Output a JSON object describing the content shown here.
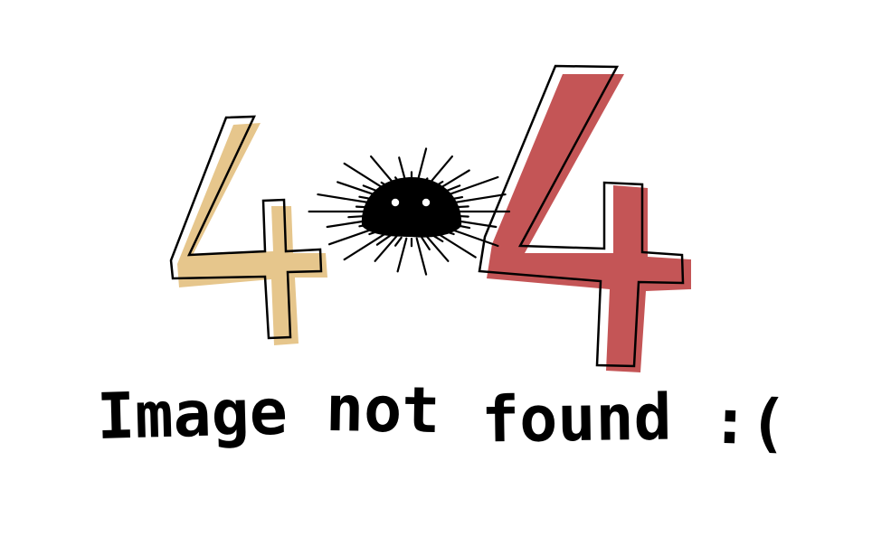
{
  "illustration": {
    "digits": [
      "4",
      "4"
    ],
    "creature_icon": "sea-urchin-icon",
    "colors": {
      "left_digit": "#e6c68c",
      "right_digit": "#c45556",
      "outline": "#000000",
      "creature": "#000000",
      "background": "#ffffff"
    }
  },
  "caption": {
    "words": [
      "Image",
      "not",
      "found",
      ":("
    ]
  }
}
